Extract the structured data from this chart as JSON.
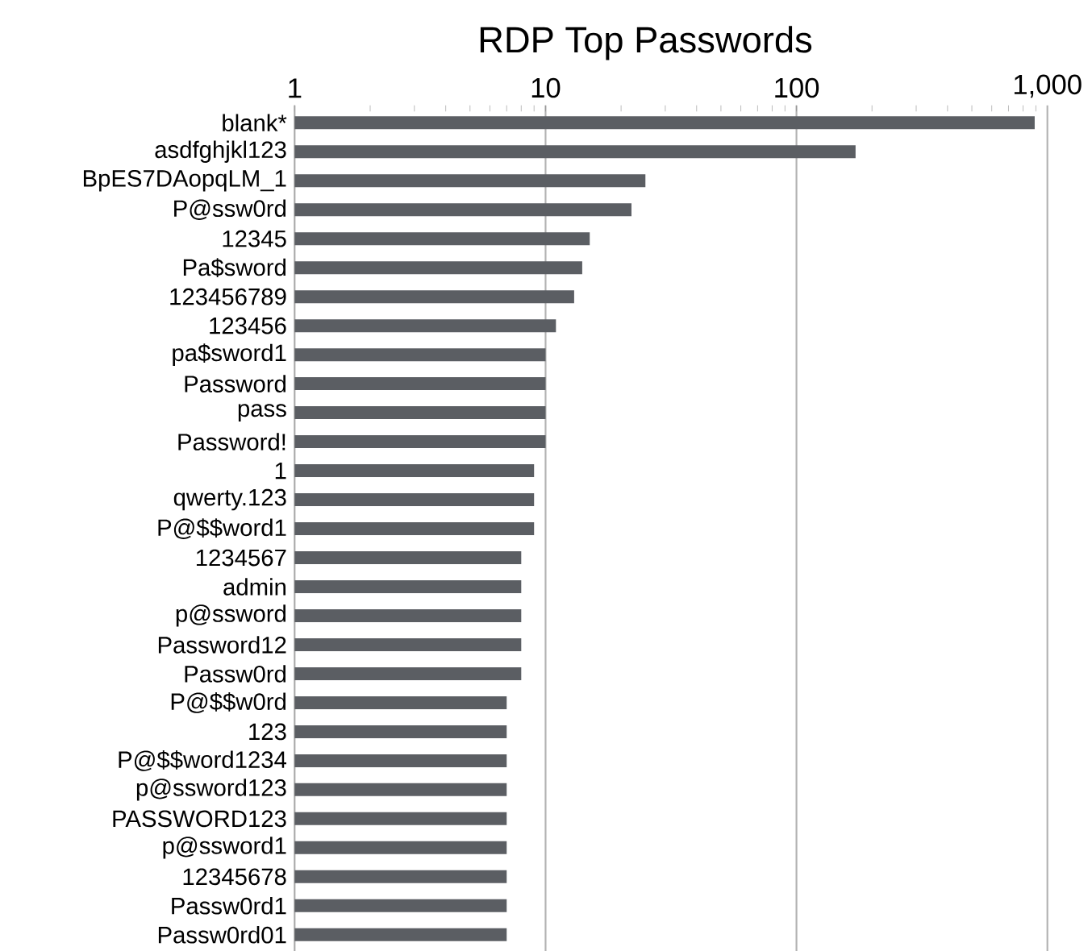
{
  "chart_data": {
    "type": "bar",
    "orientation": "horizontal",
    "title": "RDP Top Passwords",
    "log": "x",
    "grid": "x",
    "color": "#5b5e63",
    "categories": [
      "blank*",
      "asdfghjkl123",
      "BpES7DAopqLM_1",
      "P@ssw0rd",
      "12345",
      "Pa$sword",
      "123456789",
      "123456",
      "pa$sword1",
      "Password",
      "pass",
      "Password!",
      "1",
      "qwerty.123",
      "P@$$word1",
      "1234567",
      "admin",
      "p@ssword",
      "Password12",
      "Passw0rd",
      "P@$$w0rd",
      "123",
      "P@$$word1234",
      "p@ssword123",
      "PASSWORD123",
      "p@ssword1",
      "12345678",
      "Passw0rd1",
      "Passw0rd01"
    ],
    "values": [
      890,
      172,
      25,
      22,
      15,
      14,
      13,
      11,
      10,
      10,
      10,
      10,
      9,
      9,
      9,
      8,
      8,
      8,
      8,
      8,
      7,
      7,
      7,
      7,
      7,
      7,
      7,
      7,
      7
    ],
    "xlim": [
      1,
      1000
    ],
    "xticks": [
      1,
      10,
      100,
      {
        "value": 1000,
        "label": "1,000"
      }
    ]
  }
}
